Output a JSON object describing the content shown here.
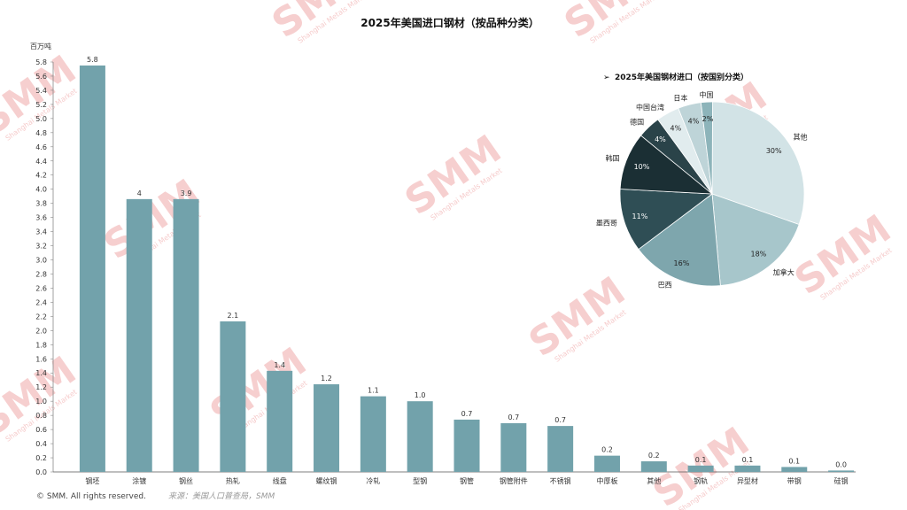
{
  "chart_data": [
    {
      "type": "bar",
      "title": "2025年美国进口钢材（按品种分类）",
      "ylabel": "百万吨",
      "ylim": [
        0,
        5.8
      ],
      "ytick_step": 0.2,
      "categories": [
        "钢坯",
        "涂镀",
        "钢丝",
        "热轧",
        "线盘",
        "螺纹钢",
        "冷轧",
        "型钢",
        "钢管",
        "钢管附件",
        "不锈钢",
        "中厚板",
        "其他",
        "钢轨",
        "异型材",
        "带钢",
        "硅钢"
      ],
      "values": [
        5.75,
        3.86,
        3.86,
        2.13,
        1.43,
        1.24,
        1.07,
        1.0,
        0.74,
        0.69,
        0.65,
        0.23,
        0.15,
        0.09,
        0.09,
        0.07,
        0.02
      ],
      "data_labels": [
        "5.8",
        "4",
        "3.9",
        "2.1",
        "1.4",
        "1.2",
        "1.1",
        "1.0",
        "0.7",
        "0.7",
        "0.7",
        "0.2",
        "0.2",
        "0.1",
        "0.1",
        "0.1",
        "0.0"
      ],
      "color": "#72a2ab",
      "grid": false
    },
    {
      "type": "pie",
      "title": "2025年美国钢材进口（按国别分类）",
      "slices": [
        {
          "label": "其他",
          "value": 30,
          "pct": "30%",
          "color": "#d2e3e6"
        },
        {
          "label": "加拿大",
          "value": 18,
          "pct": "18%",
          "color": "#a7c6cb"
        },
        {
          "label": "巴西",
          "value": 16,
          "pct": "16%",
          "color": "#7ea6ad"
        },
        {
          "label": "墨西哥",
          "value": 11,
          "pct": "11%",
          "color": "#2f4e55"
        },
        {
          "label": "韩国",
          "value": 10,
          "pct": "10%",
          "color": "#1b2f34"
        },
        {
          "label": "德国",
          "value": 4,
          "pct": "4%",
          "color": "#2a4349"
        },
        {
          "label": "中国台湾",
          "value": 4,
          "pct": "4%",
          "color": "#e1ecee"
        },
        {
          "label": "日本",
          "value": 4,
          "pct": "4%",
          "color": "#bed4d8"
        },
        {
          "label": "中国",
          "value": 2,
          "pct": "2%",
          "color": "#8db4ba"
        }
      ]
    }
  ],
  "footer": {
    "copyright": "© SMM. All rights reserved.",
    "source": "来源：美国人口普查局，SMM"
  },
  "watermark": {
    "brand": "SMM",
    "sub": "Shanghai Metals Market"
  }
}
